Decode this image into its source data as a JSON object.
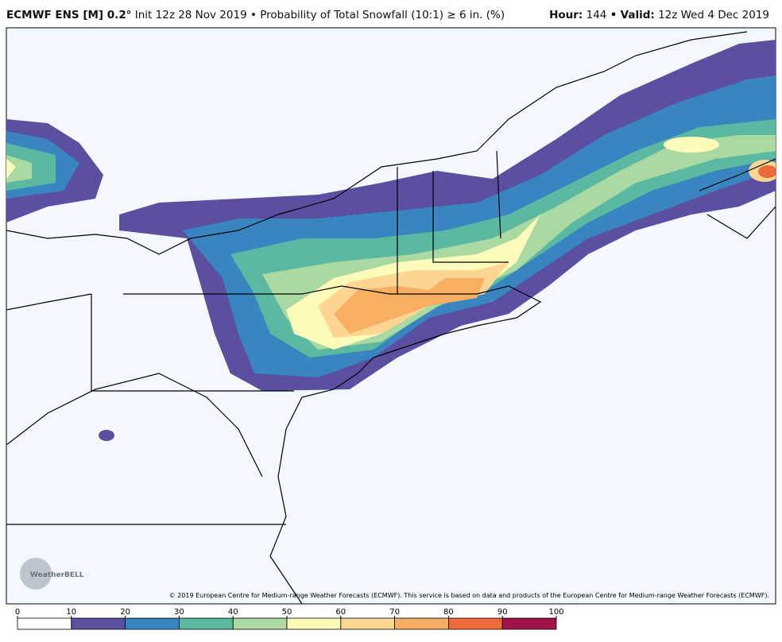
{
  "header": {
    "model": "ECMWF ENS [M] 0.2°",
    "description": "Init 12z 28 Nov 2019 • Probability of Total Snowfall (10:1) ≥ 6 in. (%)",
    "hour_label": "Hour:",
    "hour": "144",
    "separator": "•",
    "valid_label": "Valid:",
    "valid": "12z Wed 4 Dec 2019"
  },
  "copyright": "© 2019 European Centre for Medium-range Weather Forecasts (ECMWF). This service is based on data and products of the European Centre for Medium-range Weather Forecasts (ECMWF).",
  "logo": "WeatherBELL",
  "colorbar": {
    "ticks": [
      0,
      10,
      20,
      30,
      40,
      50,
      60,
      70,
      80,
      90,
      100
    ],
    "colors": [
      "#ffffff",
      "#5c4ea1",
      "#3985c0",
      "#5cb9a1",
      "#aad9a2",
      "#fdfbb9",
      "#fdd692",
      "#f8ae63",
      "#ef6a3b",
      "#a3124a"
    ]
  }
}
